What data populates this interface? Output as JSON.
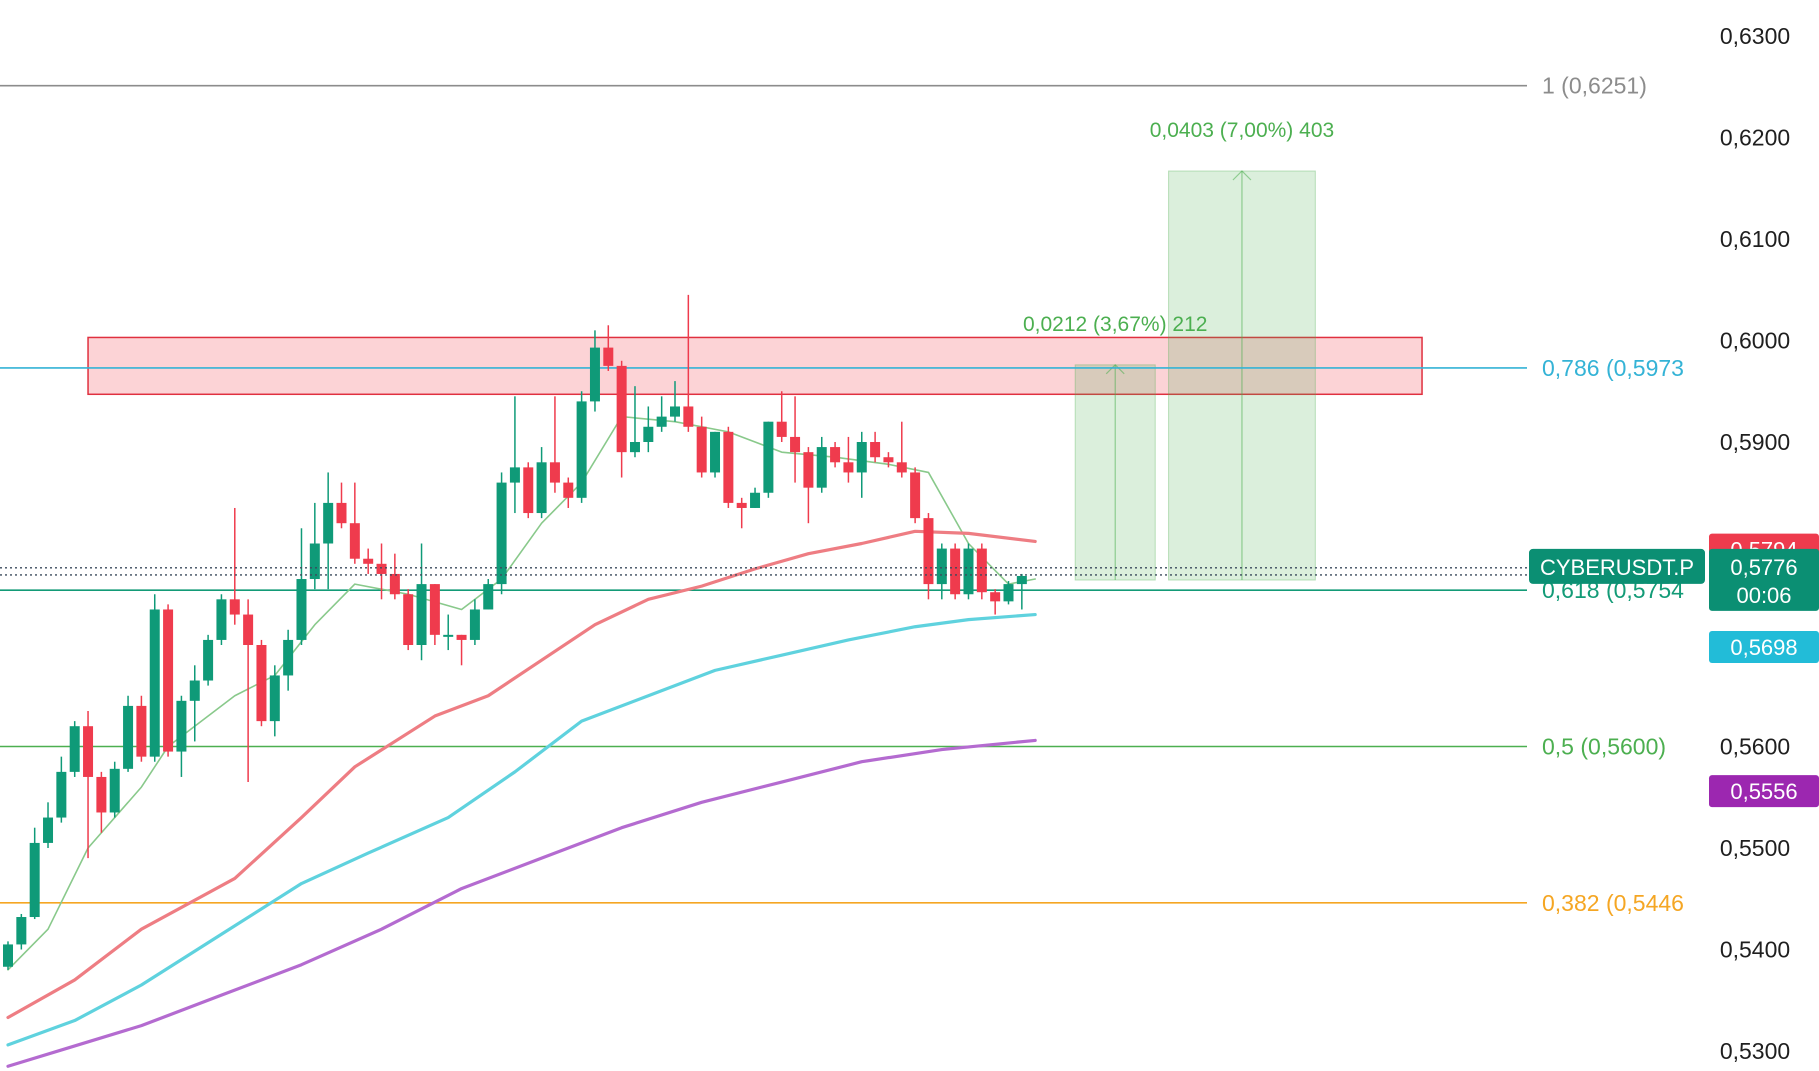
{
  "chart_data": {
    "type": "candlestick",
    "symbol": "CYBERUSDT.P",
    "ylim": [
      0.5295,
      0.6315
    ],
    "y_ticks": [
      "0,6300",
      "0,6200",
      "0,6100",
      "0,6000",
      "0,5900",
      "0,5600",
      "0,5500",
      "0,5400",
      "0,5300"
    ],
    "y_tick_values": [
      0.63,
      0.62,
      0.61,
      0.6,
      0.59,
      0.56,
      0.55,
      0.54,
      0.53
    ],
    "candle_count": 77,
    "candles": [
      [
        0.5383,
        0.5405,
        0.538,
        0.5408
      ],
      [
        0.5405,
        0.5432,
        0.54,
        0.5435
      ],
      [
        0.5432,
        0.5505,
        0.543,
        0.552
      ],
      [
        0.5505,
        0.553,
        0.55,
        0.5545
      ],
      [
        0.553,
        0.5575,
        0.5525,
        0.559
      ],
      [
        0.5575,
        0.562,
        0.557,
        0.5625
      ],
      [
        0.562,
        0.557,
        0.549,
        0.5635
      ],
      [
        0.557,
        0.5535,
        0.5515,
        0.5575
      ],
      [
        0.5535,
        0.5578,
        0.553,
        0.5585
      ],
      [
        0.5578,
        0.564,
        0.5575,
        0.565
      ],
      [
        0.564,
        0.559,
        0.5585,
        0.565
      ],
      [
        0.559,
        0.5735,
        0.5585,
        0.575
      ],
      [
        0.5735,
        0.5595,
        0.559,
        0.574
      ],
      [
        0.5595,
        0.5645,
        0.557,
        0.565
      ],
      [
        0.5645,
        0.5665,
        0.5605,
        0.568
      ],
      [
        0.5665,
        0.5705,
        0.566,
        0.571
      ],
      [
        0.5705,
        0.5745,
        0.57,
        0.575
      ],
      [
        0.5745,
        0.573,
        0.572,
        0.5835
      ],
      [
        0.573,
        0.57,
        0.5565,
        0.5745
      ],
      [
        0.57,
        0.5625,
        0.562,
        0.5705
      ],
      [
        0.5625,
        0.567,
        0.561,
        0.568
      ],
      [
        0.567,
        0.5705,
        0.5655,
        0.5715
      ],
      [
        0.5705,
        0.5765,
        0.57,
        0.5815
      ],
      [
        0.5765,
        0.58,
        0.5755,
        0.584
      ],
      [
        0.58,
        0.584,
        0.5755,
        0.587
      ],
      [
        0.584,
        0.582,
        0.5815,
        0.586
      ],
      [
        0.582,
        0.5785,
        0.578,
        0.586
      ],
      [
        0.5785,
        0.578,
        0.577,
        0.5795
      ],
      [
        0.578,
        0.577,
        0.5745,
        0.58
      ],
      [
        0.577,
        0.575,
        0.5745,
        0.579
      ],
      [
        0.575,
        0.57,
        0.5695,
        0.5755
      ],
      [
        0.57,
        0.576,
        0.5685,
        0.58
      ],
      [
        0.576,
        0.571,
        0.57,
        0.576
      ],
      [
        0.571,
        0.571,
        0.5695,
        0.573
      ],
      [
        0.571,
        0.5705,
        0.568,
        0.571
      ],
      [
        0.5705,
        0.5735,
        0.57,
        0.5745
      ],
      [
        0.5735,
        0.576,
        0.5735,
        0.5765
      ],
      [
        0.576,
        0.586,
        0.575,
        0.587
      ],
      [
        0.586,
        0.5875,
        0.583,
        0.5945
      ],
      [
        0.5875,
        0.583,
        0.5825,
        0.588
      ],
      [
        0.583,
        0.588,
        0.5825,
        0.5895
      ],
      [
        0.588,
        0.586,
        0.585,
        0.5945
      ],
      [
        0.586,
        0.5845,
        0.5835,
        0.5865
      ],
      [
        0.5845,
        0.594,
        0.584,
        0.595
      ],
      [
        0.594,
        0.5993,
        0.593,
        0.601
      ],
      [
        0.5993,
        0.5975,
        0.597,
        0.6015
      ],
      [
        0.5975,
        0.589,
        0.5865,
        0.598
      ],
      [
        0.589,
        0.59,
        0.5885,
        0.5955
      ],
      [
        0.59,
        0.5915,
        0.589,
        0.5935
      ],
      [
        0.5915,
        0.5925,
        0.591,
        0.5945
      ],
      [
        0.5925,
        0.5935,
        0.592,
        0.596
      ],
      [
        0.5935,
        0.5915,
        0.591,
        0.6045
      ],
      [
        0.5915,
        0.587,
        0.5865,
        0.5925
      ],
      [
        0.587,
        0.591,
        0.5865,
        0.591
      ],
      [
        0.591,
        0.584,
        0.5835,
        0.5915
      ],
      [
        0.584,
        0.5835,
        0.5815,
        0.5845
      ],
      [
        0.5835,
        0.585,
        0.5835,
        0.5855
      ],
      [
        0.585,
        0.592,
        0.5845,
        0.592
      ],
      [
        0.592,
        0.5905,
        0.59,
        0.595
      ],
      [
        0.5905,
        0.589,
        0.586,
        0.5945
      ],
      [
        0.589,
        0.5855,
        0.582,
        0.5895
      ],
      [
        0.5855,
        0.5895,
        0.585,
        0.5905
      ],
      [
        0.5895,
        0.588,
        0.5875,
        0.59
      ],
      [
        0.588,
        0.587,
        0.586,
        0.5905
      ],
      [
        0.587,
        0.59,
        0.5845,
        0.591
      ],
      [
        0.59,
        0.5885,
        0.588,
        0.591
      ],
      [
        0.5885,
        0.588,
        0.5875,
        0.589
      ],
      [
        0.588,
        0.587,
        0.5865,
        0.592
      ],
      [
        0.587,
        0.5825,
        0.582,
        0.5875
      ],
      [
        0.5825,
        0.576,
        0.5745,
        0.583
      ],
      [
        0.576,
        0.5795,
        0.5745,
        0.58
      ],
      [
        0.5795,
        0.575,
        0.5745,
        0.58
      ],
      [
        0.575,
        0.5795,
        0.5745,
        0.58
      ],
      [
        0.5795,
        0.5752,
        0.5745,
        0.58
      ],
      [
        0.5752,
        0.5743,
        0.573,
        0.5755
      ],
      [
        0.5743,
        0.576,
        0.574,
        0.5763
      ],
      [
        0.576,
        0.5768,
        0.5735,
        0.577
      ]
    ],
    "moving_averages": [
      {
        "color": "#89c98b",
        "values": [
          [
            0,
            0.538
          ],
          [
            3,
            0.542
          ],
          [
            6,
            0.55
          ],
          [
            10,
            0.556
          ],
          [
            12,
            0.56
          ],
          [
            17,
            0.565
          ],
          [
            20,
            0.567
          ],
          [
            23,
            0.572
          ],
          [
            26,
            0.576
          ],
          [
            30,
            0.575
          ],
          [
            34,
            0.5735
          ],
          [
            37,
            0.5765
          ],
          [
            40,
            0.582
          ],
          [
            43,
            0.586
          ],
          [
            46,
            0.5925
          ],
          [
            50,
            0.592
          ],
          [
            54,
            0.591
          ],
          [
            58,
            0.589
          ],
          [
            62,
            0.5885
          ],
          [
            66,
            0.5878
          ],
          [
            69,
            0.587
          ],
          [
            72,
            0.58
          ],
          [
            75,
            0.576
          ],
          [
            77,
            0.5765
          ]
        ]
      },
      {
        "color": "#ee7d83",
        "values": [
          [
            0,
            0.5333
          ],
          [
            5,
            0.537
          ],
          [
            10,
            0.542
          ],
          [
            17,
            0.547
          ],
          [
            22,
            0.553
          ],
          [
            26,
            0.558
          ],
          [
            32,
            0.563
          ],
          [
            36,
            0.565
          ],
          [
            40,
            0.5685
          ],
          [
            44,
            0.572
          ],
          [
            48,
            0.5745
          ],
          [
            52,
            0.5758
          ],
          [
            56,
            0.5775
          ],
          [
            60,
            0.579
          ],
          [
            64,
            0.58
          ],
          [
            68,
            0.5812
          ],
          [
            72,
            0.581
          ],
          [
            77,
            0.5802
          ]
        ]
      },
      {
        "color": "#5fd2de",
        "values": [
          [
            0,
            0.5306
          ],
          [
            5,
            0.533
          ],
          [
            10,
            0.5365
          ],
          [
            16,
            0.5415
          ],
          [
            22,
            0.5465
          ],
          [
            27,
            0.5495
          ],
          [
            33,
            0.553
          ],
          [
            38,
            0.5575
          ],
          [
            43,
            0.5625
          ],
          [
            48,
            0.565
          ],
          [
            53,
            0.5675
          ],
          [
            58,
            0.569
          ],
          [
            63,
            0.5705
          ],
          [
            68,
            0.5718
          ],
          [
            72,
            0.5725
          ],
          [
            77,
            0.573
          ]
        ]
      },
      {
        "color": "#b46bd0",
        "values": [
          [
            0,
            0.5285
          ],
          [
            5,
            0.5305
          ],
          [
            10,
            0.5325
          ],
          [
            16,
            0.5355
          ],
          [
            22,
            0.5385
          ],
          [
            28,
            0.542
          ],
          [
            34,
            0.546
          ],
          [
            40,
            0.549
          ],
          [
            46,
            0.552
          ],
          [
            52,
            0.5545
          ],
          [
            58,
            0.5565
          ],
          [
            64,
            0.5585
          ],
          [
            70,
            0.5597
          ],
          [
            77,
            0.5606
          ]
        ]
      }
    ],
    "fib_levels": [
      {
        "label": "1 (0,6251)",
        "value": 0.6251,
        "color": "#8c8c8c"
      },
      {
        "label": "0,786 (0,5973",
        "value": 0.5973,
        "color": "#34b3d6"
      },
      {
        "label": "0,618 (0,5754",
        "value": 0.5754,
        "color": "#139b77"
      },
      {
        "label": "0,5 (0,5600)",
        "value": 0.56,
        "color": "#4caf50"
      },
      {
        "label": "0,382 (0,5446",
        "value": 0.5446,
        "color": "#f5a623"
      }
    ],
    "resistance_zone": {
      "top": 0.6003,
      "bottom": 0.5947,
      "x_start_bar": 6,
      "x_end_bar": 106
    },
    "long_positions": [
      {
        "label": "0,0212 (3,67%) 212",
        "entry": 0.5764,
        "target": 0.5976,
        "x_start_bar": 80,
        "x_end_bar": 86
      },
      {
        "label": "0,0403 (7,00%) 403",
        "entry": 0.5764,
        "target": 0.6167,
        "x_start_bar": 87,
        "x_end_bar": 98
      }
    ],
    "price_badges": [
      {
        "text": "0,5794",
        "value": 0.5794,
        "color": "#ee3b4d"
      },
      {
        "text": "0,5698",
        "value": 0.5698,
        "color": "#22bcd8"
      },
      {
        "text": "0,5556",
        "value": 0.5556,
        "color": "#9c27b0"
      }
    ],
    "current_price": {
      "text": "0,5776",
      "countdown": "00:06",
      "value": 0.5776,
      "color": "#0b8f73"
    }
  }
}
